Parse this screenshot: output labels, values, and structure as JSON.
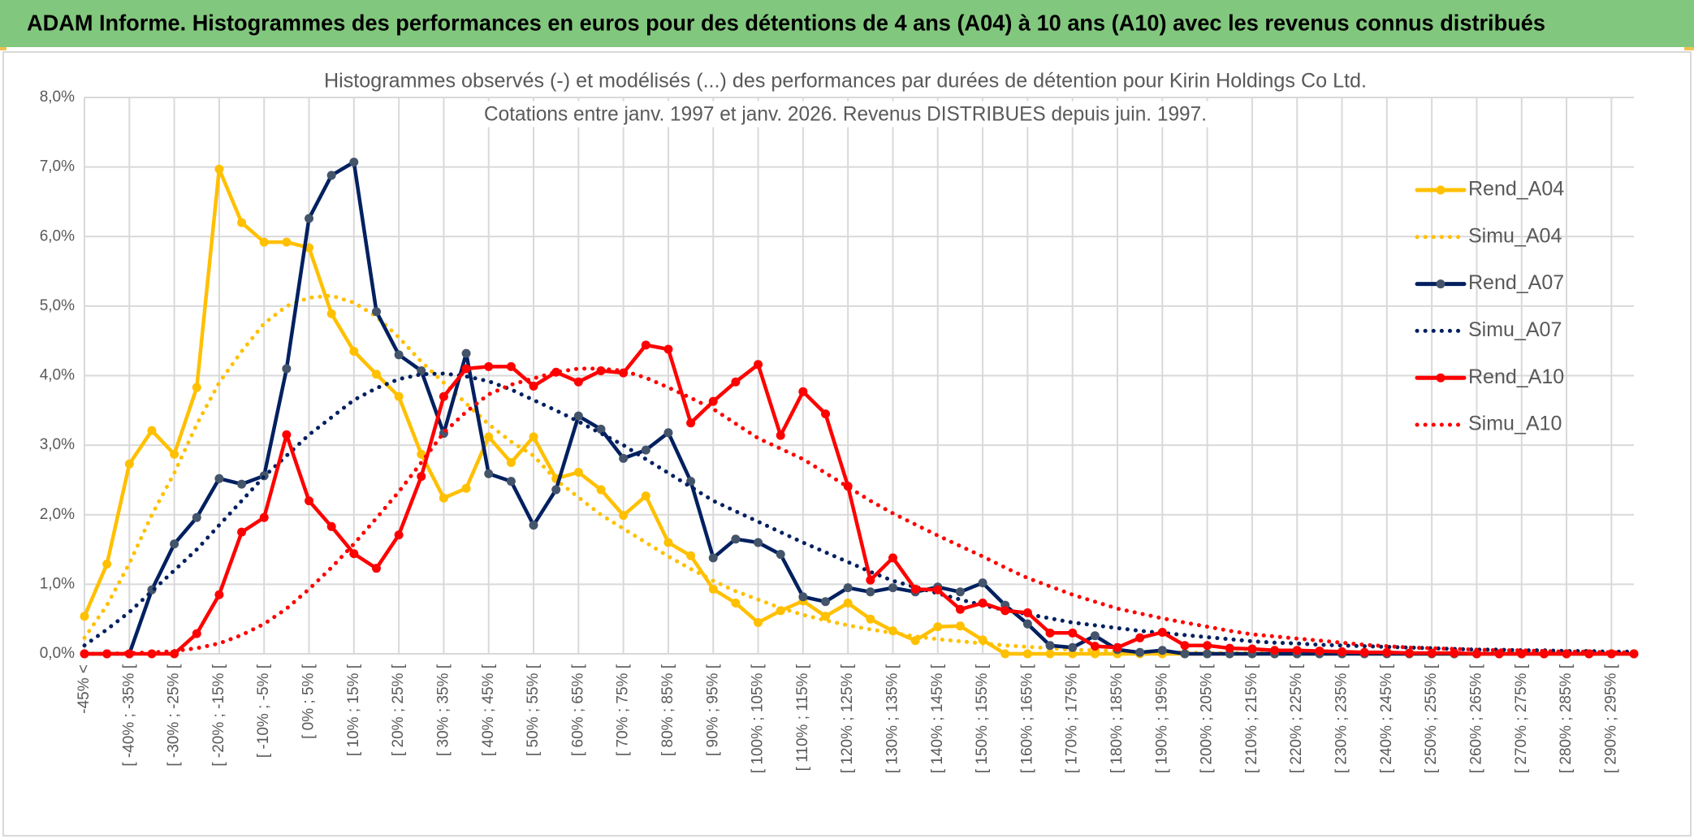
{
  "header": {
    "title": "ADAM Informe. Histogrammes des performances en euros pour des détentions de 4 ans (A04) à 10 ans (A10) avec les revenus connus distribués"
  },
  "chart_data": {
    "type": "line",
    "title": "Histogrammes observés (-) et modélisés (...) des performances par durées de détention pour Kirin Holdings Co Ltd.",
    "subtitle": "Cotations entre janv. 1997 et janv. 2026. Revenus DISTRIBUES depuis juin. 1997.",
    "categories": [
      "-45% <",
      null,
      "[ -40% ; -35% [",
      null,
      "[ -30% ; -25% [",
      null,
      "[ -20% ; -15% [",
      null,
      "[ -10% ; -5% [",
      null,
      "[ 0% ; 5% [",
      null,
      "[ 10% ; 15% [",
      null,
      "[ 20% ; 25% [",
      null,
      "[ 30% ; 35% [",
      null,
      "[ 40% ; 45% [",
      null,
      "[ 50% ; 55% [",
      null,
      "[ 60% ; 65% [",
      null,
      "[ 70% ; 75% [",
      null,
      "[ 80% ; 85% [",
      null,
      "[ 90% ; 95% [",
      null,
      "[ 100% ; 105% [",
      null,
      "[ 110% ; 115% [",
      null,
      "[ 120% ; 125% [",
      null,
      "[ 130% ; 135% [",
      null,
      "[ 140% ; 145% [",
      null,
      "[ 150% ; 155% [",
      null,
      "[ 160% ; 165% [",
      null,
      "[ 170% ; 175% [",
      null,
      "[ 180% ; 185% [",
      null,
      "[ 190% ; 195% [",
      null,
      "[ 200% ; 205% [",
      null,
      "[ 210% ; 215% [",
      null,
      "[ 220% ; 225% [",
      null,
      "[ 230% ; 235% [",
      null,
      "[ 240% ; 245% [",
      null,
      "[ 250% ; 255% [",
      null,
      "[ 260% ; 265% [",
      null,
      "[ 270% ; 275% [",
      null,
      "[ 280% ; 285% [",
      null,
      "[ 290% ; 295% [",
      null
    ],
    "series": [
      {
        "name": "Rend_A04",
        "color": "#FFC000",
        "marker_color": "#FFC000",
        "style": "solid",
        "values": [
          0.54,
          1.29,
          2.73,
          3.21,
          2.87,
          3.83,
          6.97,
          6.2,
          5.92,
          5.92,
          5.84,
          4.89,
          4.35,
          4.02,
          3.7,
          2.87,
          2.24,
          2.38,
          3.12,
          2.75,
          3.12,
          2.52,
          2.61,
          2.36,
          1.99,
          2.27,
          1.6,
          1.41,
          0.93,
          0.73,
          0.45,
          0.62,
          0.76,
          0.54,
          0.73,
          0.5,
          0.33,
          0.19,
          0.39,
          0.4,
          0.2,
          0,
          0,
          0,
          0,
          0,
          0,
          0,
          0,
          0,
          0,
          0,
          0,
          0,
          0,
          0,
          0,
          0,
          0,
          0,
          0,
          0,
          0,
          0,
          0,
          0,
          0,
          0,
          0,
          0
        ]
      },
      {
        "name": "Simu_A04",
        "color": "#FFC000",
        "style": "dotted",
        "values": [
          0.23,
          0.7,
          1.3,
          2.0,
          2.6,
          3.3,
          3.9,
          4.35,
          4.75,
          5.0,
          5.12,
          5.15,
          5.05,
          4.85,
          4.55,
          4.2,
          3.9,
          3.6,
          3.3,
          3.05,
          2.85,
          2.5,
          2.25,
          2.0,
          1.8,
          1.6,
          1.4,
          1.22,
          1.05,
          0.9,
          0.78,
          0.66,
          0.56,
          0.48,
          0.41,
          0.35,
          0.3,
          0.25,
          0.21,
          0.18,
          0.15,
          0.12,
          0.1,
          0.08,
          0.06,
          0.05,
          0.04,
          0.03,
          0.02,
          0.02,
          0.01,
          0.01,
          0.01,
          0.01,
          0.01,
          0.01,
          0.01,
          0.01,
          0.01,
          0.01,
          0,
          0,
          0,
          0,
          0,
          0,
          0,
          0,
          0,
          0
        ]
      },
      {
        "name": "Rend_A07",
        "color": "#002060",
        "marker_color": "#44546A",
        "style": "solid",
        "values": [
          0,
          0,
          0,
          0.92,
          1.58,
          1.96,
          2.52,
          2.44,
          2.56,
          4.1,
          6.26,
          6.88,
          7.07,
          4.92,
          4.3,
          4.07,
          3.17,
          4.32,
          2.59,
          2.48,
          1.85,
          2.36,
          3.42,
          3.23,
          2.81,
          2.93,
          3.18,
          2.48,
          1.38,
          1.65,
          1.6,
          1.43,
          0.82,
          0.75,
          0.95,
          0.89,
          0.95,
          0.89,
          0.96,
          0.89,
          1.02,
          0.7,
          0.43,
          0.12,
          0.09,
          0.26,
          0.06,
          0.02,
          0.05,
          0,
          0,
          0,
          0,
          0,
          0,
          0,
          0,
          0,
          0,
          0,
          0,
          0,
          0,
          0,
          0,
          0,
          0,
          0,
          0,
          0
        ]
      },
      {
        "name": "Simu_A07",
        "color": "#002060",
        "style": "dotted",
        "values": [
          0.12,
          0.35,
          0.6,
          0.9,
          1.2,
          1.5,
          1.85,
          2.2,
          2.55,
          2.85,
          3.15,
          3.4,
          3.65,
          3.82,
          3.95,
          4.02,
          4.03,
          3.99,
          3.92,
          3.8,
          3.65,
          3.5,
          3.34,
          3.17,
          3.0,
          2.8,
          2.6,
          2.4,
          2.2,
          2.05,
          1.9,
          1.75,
          1.6,
          1.46,
          1.32,
          1.18,
          1.05,
          0.96,
          0.87,
          0.78,
          0.7,
          0.63,
          0.57,
          0.51,
          0.45,
          0.41,
          0.37,
          0.33,
          0.3,
          0.27,
          0.24,
          0.21,
          0.18,
          0.16,
          0.15,
          0.13,
          0.12,
          0.11,
          0.1,
          0.09,
          0.08,
          0.07,
          0.06,
          0.06,
          0.05,
          0.05,
          0.04,
          0.04,
          0.03,
          0.03
        ]
      },
      {
        "name": "Rend_A10",
        "color": "#FF0000",
        "marker_color": "#FF0000",
        "style": "solid",
        "values": [
          0,
          0,
          0,
          0,
          0,
          0.29,
          0.85,
          1.75,
          1.96,
          3.15,
          2.2,
          1.83,
          1.44,
          1.23,
          1.71,
          2.55,
          3.7,
          4.1,
          4.13,
          4.13,
          3.85,
          4.05,
          3.91,
          4.07,
          4.04,
          4.44,
          4.38,
          3.32,
          3.63,
          3.91,
          4.16,
          3.14,
          3.77,
          3.45,
          2.41,
          1.06,
          1.38,
          0.93,
          0.92,
          0.64,
          0.73,
          0.62,
          0.59,
          0.3,
          0.3,
          0.11,
          0.09,
          0.23,
          0.31,
          0.12,
          0.12,
          0.08,
          0.07,
          0.05,
          0.05,
          0.04,
          0.03,
          0.02,
          0.02,
          0.01,
          0.01,
          0.01,
          0,
          0,
          0,
          0,
          0,
          0,
          0,
          0
        ]
      },
      {
        "name": "Simu_A10",
        "color": "#FF0000",
        "style": "dotted",
        "values": [
          0,
          0,
          0.01,
          0.02,
          0.04,
          0.08,
          0.15,
          0.27,
          0.43,
          0.65,
          0.93,
          1.24,
          1.58,
          1.95,
          2.33,
          2.75,
          3.18,
          3.48,
          3.73,
          3.87,
          3.96,
          4.05,
          4.1,
          4.1,
          4.07,
          3.97,
          3.83,
          3.68,
          3.52,
          3.31,
          3.1,
          2.95,
          2.8,
          2.6,
          2.4,
          2.2,
          2.02,
          1.86,
          1.7,
          1.55,
          1.4,
          1.24,
          1.09,
          0.97,
          0.85,
          0.75,
          0.65,
          0.58,
          0.51,
          0.45,
          0.39,
          0.33,
          0.28,
          0.25,
          0.22,
          0.19,
          0.16,
          0.13,
          0.11,
          0.09,
          0.08,
          0.07,
          0.06,
          0.05,
          0.05,
          0.04,
          0.03,
          0.03,
          0.02,
          0.02
        ]
      }
    ],
    "ylim": [
      0,
      8
    ],
    "yticks": [
      {
        "value": 0,
        "label": "0,0%"
      },
      {
        "value": 1,
        "label": "1,0%"
      },
      {
        "value": 2,
        "label": "2,0%"
      },
      {
        "value": 3,
        "label": "3,0%"
      },
      {
        "value": 4,
        "label": "4,0%"
      },
      {
        "value": 5,
        "label": "5,0%"
      },
      {
        "value": 6,
        "label": "6,0%"
      },
      {
        "value": 7,
        "label": "7,0%"
      },
      {
        "value": 8,
        "label": "8,0%"
      }
    ],
    "grid": true,
    "legend": "right"
  }
}
